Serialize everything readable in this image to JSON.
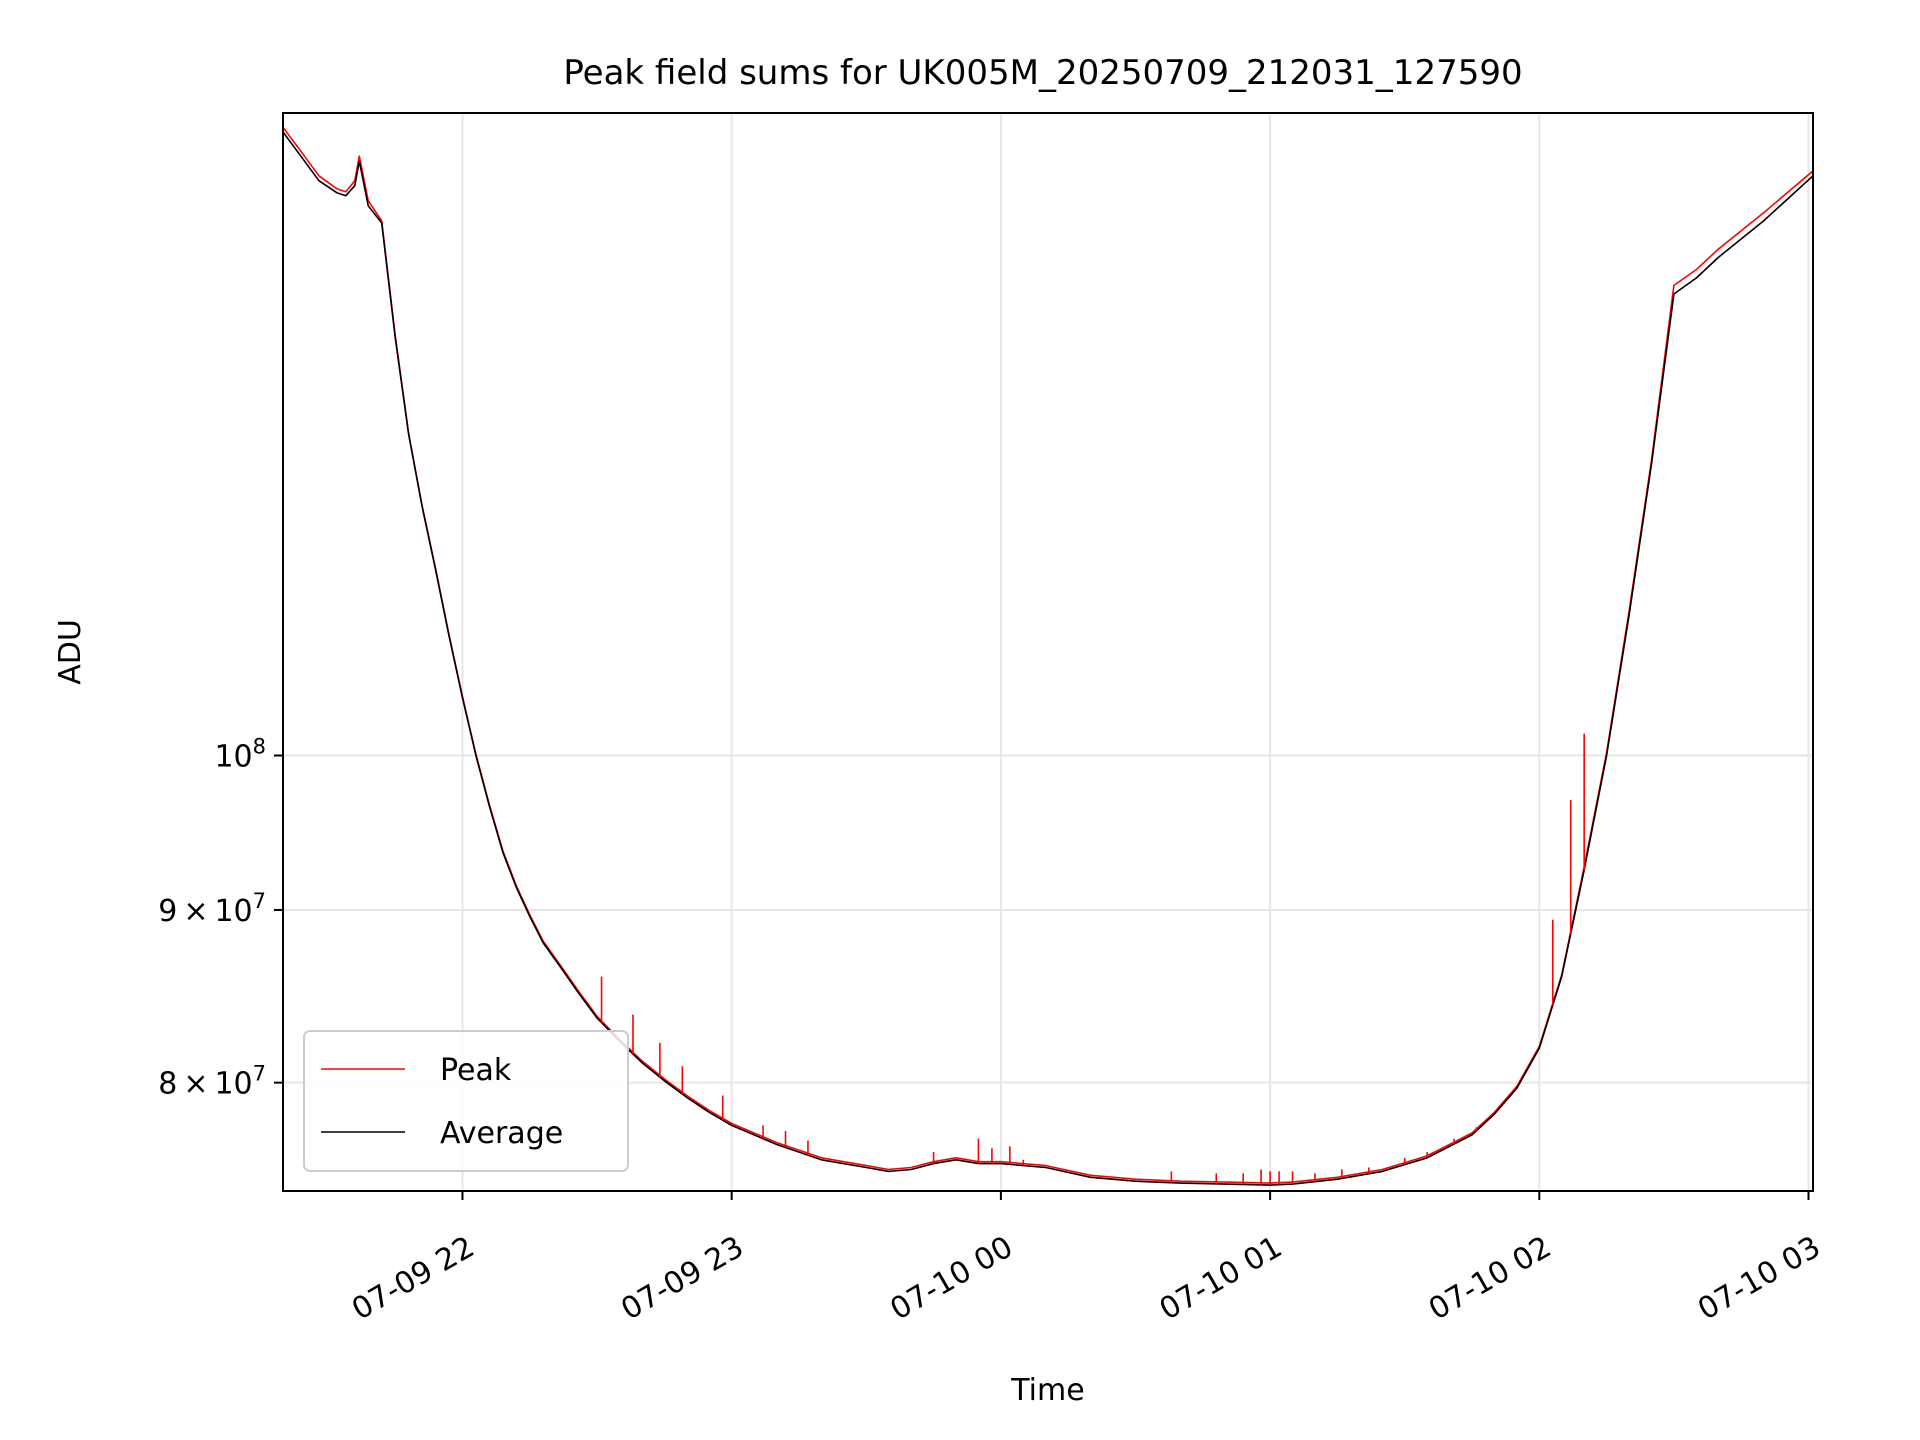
{
  "chart_data": {
    "type": "line",
    "title": "Peak field sums for UK005M_20250709_212031_127590",
    "xlabel": "Time",
    "ylabel": "ADU",
    "yscale": "log",
    "grid": true,
    "legend_position": "lower-left",
    "x_ticks": [
      {
        "label": "07-09 22",
        "value": "2025-07-09 22:00"
      },
      {
        "label": "07-09 23",
        "value": "2025-07-09 23:00"
      },
      {
        "label": "07-10 00",
        "value": "2025-07-10 00:00"
      },
      {
        "label": "07-10 01",
        "value": "2025-07-10 01:00"
      },
      {
        "label": "07-10 02",
        "value": "2025-07-10 02:00"
      },
      {
        "label": "07-10 03",
        "value": "2025-07-10 03:00"
      }
    ],
    "y_ticks": [
      {
        "mantissa": "8",
        "exponent": "7",
        "value": 80000000
      },
      {
        "mantissa": "9",
        "exponent": "7",
        "value": 90000000
      },
      {
        "mantissa": "",
        "exponent": "8",
        "value": 100000000
      }
    ],
    "xlim": [
      "2025-07-09 21:20",
      "2025-07-10 03:01"
    ],
    "ylim": [
      74300000,
      155000000
    ],
    "series": [
      {
        "name": "Average",
        "color": "#000000",
        "x": [
          "2025-07-09 21:20",
          "2025-07-09 21:24",
          "2025-07-09 21:28",
          "2025-07-09 21:32",
          "2025-07-09 21:34",
          "2025-07-09 21:36",
          "2025-07-09 21:37",
          "2025-07-09 21:39",
          "2025-07-09 21:42",
          "2025-07-09 21:45",
          "2025-07-09 21:48",
          "2025-07-09 21:51",
          "2025-07-09 21:54",
          "2025-07-09 21:57",
          "2025-07-09 22:00",
          "2025-07-09 22:03",
          "2025-07-09 22:06",
          "2025-07-09 22:09",
          "2025-07-09 22:12",
          "2025-07-09 22:15",
          "2025-07-09 22:18",
          "2025-07-09 22:22",
          "2025-07-09 22:26",
          "2025-07-09 22:30",
          "2025-07-09 22:35",
          "2025-07-09 22:40",
          "2025-07-09 22:45",
          "2025-07-09 22:50",
          "2025-07-09 22:55",
          "2025-07-09 23:00",
          "2025-07-09 23:10",
          "2025-07-09 23:20",
          "2025-07-09 23:30",
          "2025-07-09 23:35",
          "2025-07-09 23:40",
          "2025-07-09 23:45",
          "2025-07-09 23:50",
          "2025-07-09 23:55",
          "2025-07-10 00:00",
          "2025-07-10 00:10",
          "2025-07-10 00:20",
          "2025-07-10 00:30",
          "2025-07-10 00:40",
          "2025-07-10 00:50",
          "2025-07-10 01:00",
          "2025-07-10 01:05",
          "2025-07-10 01:15",
          "2025-07-10 01:25",
          "2025-07-10 01:35",
          "2025-07-10 01:45",
          "2025-07-10 01:50",
          "2025-07-10 01:55",
          "2025-07-10 02:00",
          "2025-07-10 02:05",
          "2025-07-10 02:10",
          "2025-07-10 02:15",
          "2025-07-10 02:20",
          "2025-07-10 02:25",
          "2025-07-10 02:30",
          "2025-07-10 02:35",
          "2025-07-10 02:40",
          "2025-07-10 02:50",
          "2025-07-10 03:01"
        ],
        "values": [
          153000000,
          150500000,
          148000000,
          146800000,
          146500000,
          147500000,
          150000000,
          145500000,
          143800000,
          133000000,
          124500000,
          118500000,
          113500000,
          108500000,
          104000000,
          100000000,
          96600000,
          93600000,
          91400000,
          89600000,
          88000000,
          86500000,
          85000000,
          83600000,
          82300000,
          81100000,
          80100000,
          79200000,
          78400000,
          77700000,
          76700000,
          75900000,
          75500000,
          75300000,
          75400000,
          75700000,
          75900000,
          75700000,
          75700000,
          75500000,
          75000000,
          74800000,
          74700000,
          74650000,
          74600000,
          74650000,
          74900000,
          75300000,
          76000000,
          77200000,
          78300000,
          79700000,
          81900000,
          86000000,
          92500000,
          100000000,
          110000000,
          122000000,
          137000000,
          138500000,
          140500000,
          144000000,
          148500000
        ]
      },
      {
        "name": "Peak",
        "color": "#ff0000",
        "x": [
          "2025-07-09 21:20",
          "2025-07-09 21:24",
          "2025-07-09 21:28",
          "2025-07-09 21:32",
          "2025-07-09 21:34",
          "2025-07-09 21:36",
          "2025-07-09 21:37",
          "2025-07-09 21:39",
          "2025-07-09 21:42",
          "2025-07-09 21:45",
          "2025-07-09 21:48",
          "2025-07-09 21:51",
          "2025-07-09 21:54",
          "2025-07-09 21:57",
          "2025-07-09 22:00",
          "2025-07-09 22:03",
          "2025-07-09 22:06",
          "2025-07-09 22:09",
          "2025-07-09 22:12",
          "2025-07-09 22:15",
          "2025-07-09 22:18",
          "2025-07-09 22:22",
          "2025-07-09 22:26",
          "2025-07-09 22:30",
          "2025-07-09 22:35",
          "2025-07-09 22:40",
          "2025-07-09 22:45",
          "2025-07-09 22:50",
          "2025-07-09 22:55",
          "2025-07-09 23:00",
          "2025-07-09 23:10",
          "2025-07-09 23:20",
          "2025-07-09 23:30",
          "2025-07-09 23:35",
          "2025-07-09 23:40",
          "2025-07-09 23:45",
          "2025-07-09 23:50",
          "2025-07-09 23:55",
          "2025-07-10 00:00",
          "2025-07-10 00:10",
          "2025-07-10 00:20",
          "2025-07-10 00:30",
          "2025-07-10 00:40",
          "2025-07-10 00:50",
          "2025-07-10 01:00",
          "2025-07-10 01:05",
          "2025-07-10 01:15",
          "2025-07-10 01:25",
          "2025-07-10 01:35",
          "2025-07-10 01:45",
          "2025-07-10 01:50",
          "2025-07-10 01:55",
          "2025-07-10 02:00",
          "2025-07-10 02:05",
          "2025-07-10 02:10",
          "2025-07-10 02:15",
          "2025-07-10 02:20",
          "2025-07-10 02:25",
          "2025-07-10 02:30",
          "2025-07-10 02:35",
          "2025-07-10 02:40",
          "2025-07-10 02:50",
          "2025-07-10 03:01"
        ],
        "values": [
          153500000,
          151000000,
          148500000,
          147200000,
          146900000,
          148000000,
          150500000,
          146000000,
          144000000,
          133200000,
          124600000,
          118600000,
          113600000,
          108600000,
          104100000,
          100100000,
          96700000,
          93700000,
          91500000,
          89700000,
          88100000,
          86600000,
          85100000,
          83700000,
          82400000,
          81200000,
          80200000,
          79300000,
          78500000,
          77800000,
          76800000,
          76000000,
          75600000,
          75400000,
          75500000,
          75800000,
          76000000,
          75800000,
          75800000,
          75600000,
          75100000,
          74900000,
          74800000,
          74750000,
          74700000,
          74750000,
          75000000,
          75400000,
          76100000,
          77300000,
          78400000,
          79800000,
          82000000,
          86100000,
          92700000,
          100200000,
          110300000,
          122300000,
          137800000,
          139300000,
          141300000,
          144800000,
          149000000
        ]
      }
    ],
    "spikes": {
      "series": "Peak",
      "x": [
        "2025-07-09 22:31",
        "2025-07-09 22:38",
        "2025-07-09 22:44",
        "2025-07-09 22:49",
        "2025-07-09 22:58",
        "2025-07-09 23:07",
        "2025-07-09 23:12",
        "2025-07-09 23:17",
        "2025-07-09 23:45",
        "2025-07-09 23:55",
        "2025-07-09 23:58",
        "2025-07-10 00:02",
        "2025-07-10 00:05",
        "2025-07-10 00:38",
        "2025-07-10 00:48",
        "2025-07-10 00:54",
        "2025-07-10 00:58",
        "2025-07-10 01:00",
        "2025-07-10 01:02",
        "2025-07-10 01:05",
        "2025-07-10 01:10",
        "2025-07-10 01:16",
        "2025-07-10 01:22",
        "2025-07-10 01:30",
        "2025-07-10 01:35",
        "2025-07-10 01:41",
        "2025-07-10 01:46",
        "2025-07-10 01:52",
        "2025-07-10 02:03",
        "2025-07-10 02:07",
        "2025-07-10 02:10"
      ],
      "values": [
        86000000,
        83800000,
        82200000,
        80900000,
        79300000,
        77700000,
        77400000,
        76900000,
        76300000,
        77000000,
        76500000,
        76600000,
        75900000,
        75300000,
        75200000,
        75200000,
        75400000,
        75300000,
        75300000,
        75300000,
        75200000,
        75400000,
        75500000,
        76000000,
        76300000,
        77000000,
        77600000,
        78800000,
        89400000,
        97000000,
        101500000
      ]
    }
  }
}
